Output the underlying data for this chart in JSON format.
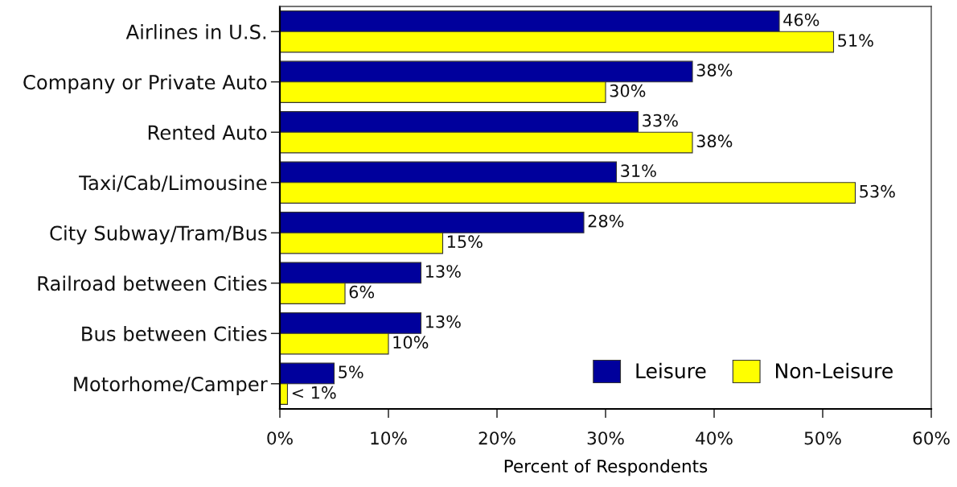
{
  "chart_data": {
    "type": "bar",
    "orientation": "horizontal",
    "xlabel": "Percent of Respondents",
    "categories": [
      "Airlines in U.S.",
      "Company or Private Auto",
      "Rented Auto",
      "Taxi/Cab/Limousine",
      "City Subway/Tram/Bus",
      "Railroad between Cities",
      "Bus between Cities",
      "Motorhome/Camper"
    ],
    "series": [
      {
        "name": "Leisure",
        "color": "#00009c",
        "values": [
          46,
          38,
          33,
          31,
          28,
          13,
          13,
          5
        ],
        "value_labels": [
          "46%",
          "38%",
          "33%",
          "31%",
          "28%",
          "13%",
          "13%",
          "5%"
        ]
      },
      {
        "name": "Non-Leisure",
        "color": "#ffff00",
        "values": [
          51,
          30,
          38,
          53,
          15,
          6,
          10,
          0.7
        ],
        "value_labels": [
          "51%",
          "30%",
          "38%",
          "53%",
          "15%",
          "6%",
          "10%",
          "< 1%"
        ]
      }
    ],
    "xlim": [
      0,
      60
    ],
    "xticks": [
      {
        "value": 0,
        "label": "0%"
      },
      {
        "value": 10,
        "label": "10%"
      },
      {
        "value": 20,
        "label": "20%"
      },
      {
        "value": 30,
        "label": "30%"
      },
      {
        "value": 40,
        "label": "40%"
      },
      {
        "value": 50,
        "label": "50%"
      },
      {
        "value": 60,
        "label": "60%"
      }
    ],
    "grid": false,
    "legend": "bottom right"
  }
}
